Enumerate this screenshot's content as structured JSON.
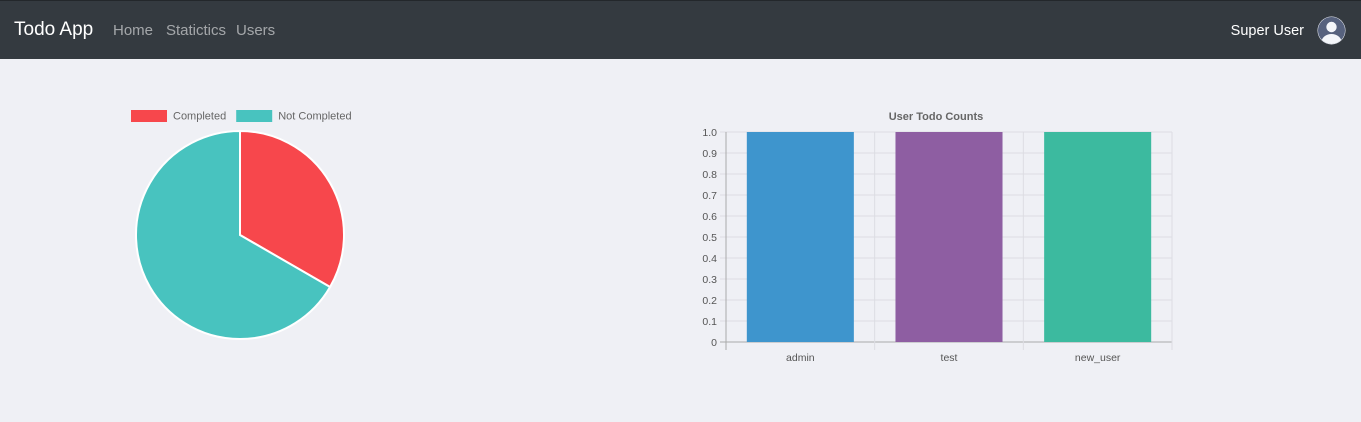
{
  "navbar": {
    "brand": "Todo App",
    "links": [
      {
        "label": "Home"
      },
      {
        "label": "Statictics"
      },
      {
        "label": "Users"
      }
    ],
    "user_name": "Super User",
    "avatar_icon": "user-avatar-icon"
  },
  "chart_data": [
    {
      "type": "pie",
      "title": "",
      "legend_position": "top",
      "labels": [
        "Completed",
        "Not Completed"
      ],
      "values": [
        1,
        2
      ],
      "colors": [
        "#f7474c",
        "#48c3bf"
      ]
    },
    {
      "type": "bar",
      "title": "User Todo Counts",
      "categories": [
        "admin",
        "test",
        "new_user"
      ],
      "values": [
        1,
        1,
        1
      ],
      "colors": [
        "#3e95cd",
        "#8e5ea2",
        "#3cba9f"
      ],
      "ylim": [
        0,
        1
      ],
      "yticks": [
        "1.0",
        "0.9",
        "0.8",
        "0.7",
        "0.6",
        "0.5",
        "0.4",
        "0.3",
        "0.2",
        "0.1",
        "0"
      ],
      "grid": true,
      "xlabel": "",
      "ylabel": ""
    }
  ]
}
